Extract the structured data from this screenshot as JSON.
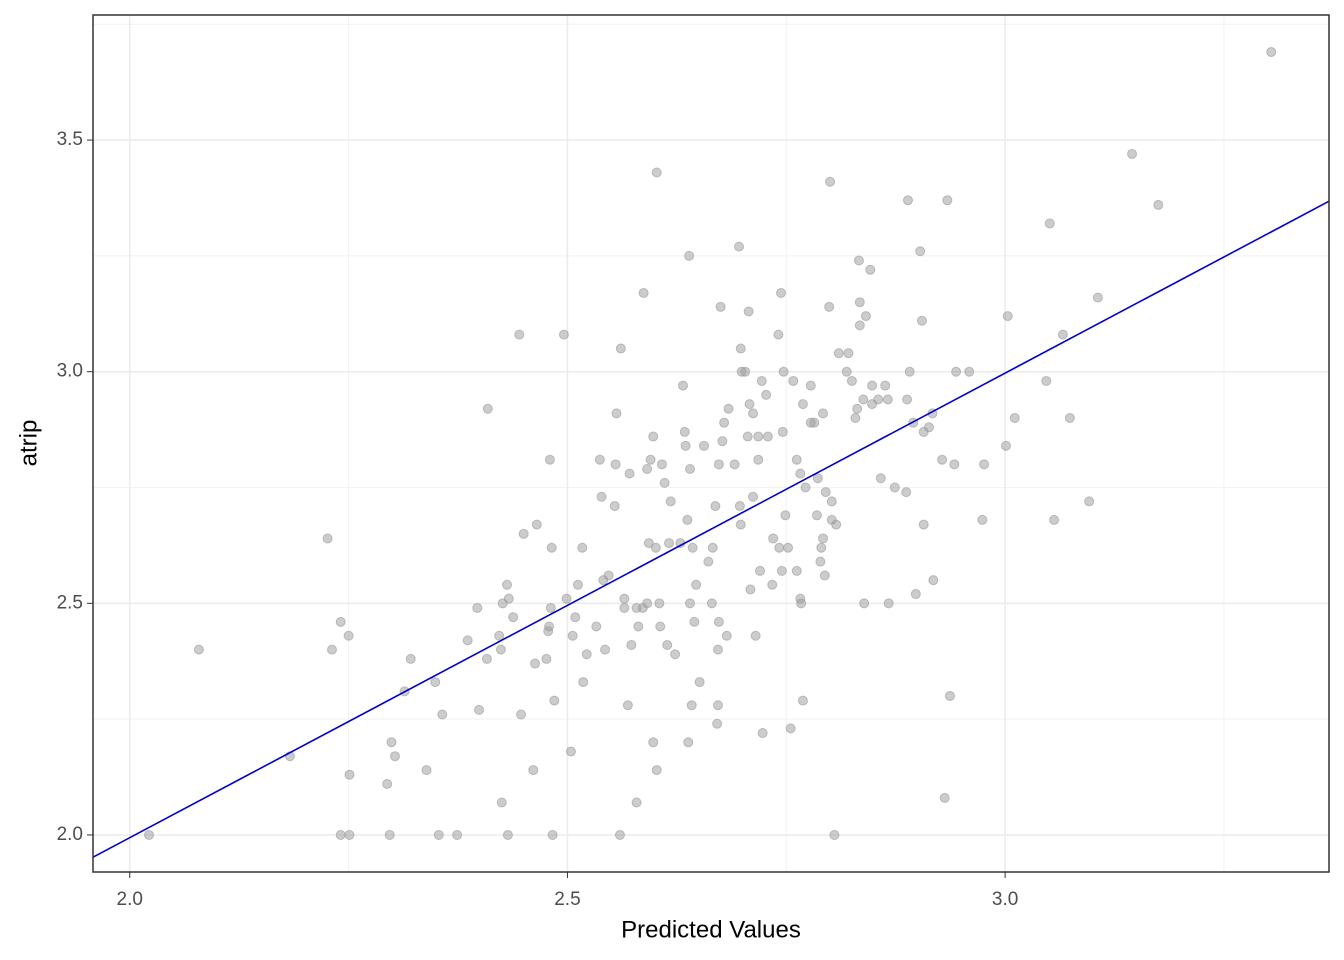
{
  "chart_data": {
    "type": "scatter",
    "xlabel": "Predicted Values",
    "ylabel": "atrip",
    "xlim": [
      1.958,
      3.37
    ],
    "ylim": [
      1.92,
      3.77
    ],
    "xticks": [
      {
        "value": 2.0,
        "label": "2.0"
      },
      2.5,
      {
        "value": 3.0,
        "label": "3.0"
      }
    ],
    "yticks": [
      {
        "value": 2.0,
        "label": "2.0"
      },
      2.5,
      {
        "value": 3.0,
        "label": "3.0"
      },
      3.5
    ],
    "grid": true,
    "minor_grid": true,
    "point_color": "#999999",
    "line_color": "#0000cc",
    "fit_line": {
      "x": [
        1.958,
        3.37
      ],
      "y": [
        1.952,
        3.368
      ]
    },
    "x": [
      2.022,
      2.079,
      2.183,
      2.226,
      2.231,
      2.241,
      2.25,
      2.241,
      2.251,
      2.251,
      2.297,
      2.299,
      2.303,
      2.294,
      2.314,
      2.321,
      2.339,
      2.349,
      2.353,
      2.357,
      2.374,
      2.386,
      2.397,
      2.399,
      2.409,
      2.408,
      2.422,
      2.424,
      2.425,
      2.426,
      2.431,
      2.433,
      2.432,
      2.438,
      2.445,
      2.447,
      2.45,
      2.461,
      2.463,
      2.465,
      2.476,
      2.478,
      2.479,
      2.48,
      2.482,
      2.485,
      2.483,
      2.481,
      2.496,
      2.499,
      2.504,
      2.506,
      2.509,
      2.512,
      2.517,
      2.518,
      2.522,
      2.533,
      2.537,
      2.539,
      2.543,
      2.541,
      2.547,
      2.554,
      2.555,
      2.556,
      2.56,
      2.561,
      2.565,
      2.565,
      2.569,
      2.571,
      2.573,
      2.579,
      2.581,
      2.579,
      2.586,
      2.587,
      2.591,
      2.591,
      2.593,
      2.595,
      2.598,
      2.598,
      2.601,
      2.602,
      2.602,
      2.605,
      2.606,
      2.608,
      2.611,
      2.614,
      2.616,
      2.618,
      2.623,
      2.629,
      2.632,
      2.634,
      2.635,
      2.637,
      2.638,
      2.639,
      2.64,
      2.64,
      2.642,
      2.643,
      2.645,
      2.647,
      2.651,
      2.656,
      2.661,
      2.665,
      2.666,
      2.669,
      2.671,
      2.672,
      2.672,
      2.673,
      2.673,
      2.675,
      2.677,
      2.679,
      2.682,
      2.684,
      2.691,
      2.696,
      2.697,
      2.698,
      2.699,
      2.698,
      2.703,
      2.706,
      2.707,
      2.708,
      2.709,
      2.712,
      2.712,
      2.715,
      2.718,
      2.718,
      2.72,
      2.722,
      2.723,
      2.727,
      2.729,
      2.734,
      2.735,
      2.741,
      2.742,
      2.744,
      2.745,
      2.746,
      2.747,
      2.749,
      2.752,
      2.755,
      2.758,
      2.762,
      2.762,
      2.766,
      2.766,
      2.767,
      2.769,
      2.769,
      2.772,
      2.778,
      2.778,
      2.782,
      2.785,
      2.786,
      2.789,
      2.79,
      2.792,
      2.792,
      2.794,
      2.795,
      2.799,
      2.8,
      2.802,
      2.802,
      2.805,
      2.807,
      2.81,
      2.819,
      2.821,
      2.825,
      2.829,
      2.831,
      2.833,
      2.834,
      2.834,
      2.838,
      2.839,
      2.841,
      2.846,
      2.848,
      2.848,
      2.855,
      2.858,
      2.863,
      2.866,
      2.867,
      2.874,
      2.887,
      2.888,
      2.889,
      2.891,
      2.895,
      2.898,
      2.903,
      2.905,
      2.907,
      2.907,
      2.913,
      2.917,
      2.918,
      2.928,
      2.931,
      2.934,
      2.937,
      2.942,
      2.944,
      2.959,
      2.974,
      2.976,
      3.001,
      3.003,
      3.011,
      3.047,
      3.051,
      3.056,
      3.066,
      3.074,
      3.096,
      3.106,
      3.145,
      3.175,
      3.304
    ],
    "values": [
      2.0,
      2.4,
      2.17,
      2.64,
      2.4,
      2.46,
      2.43,
      2.0,
      2.0,
      2.13,
      2.0,
      2.2,
      2.17,
      2.11,
      2.31,
      2.38,
      2.14,
      2.33,
      2.0,
      2.26,
      2.0,
      2.42,
      2.49,
      2.27,
      2.92,
      2.38,
      2.43,
      2.4,
      2.07,
      2.5,
      2.54,
      2.51,
      2.0,
      2.47,
      3.08,
      2.26,
      2.65,
      2.14,
      2.37,
      2.67,
      2.38,
      2.44,
      2.45,
      2.81,
      2.62,
      2.29,
      2.0,
      2.49,
      3.08,
      2.51,
      2.18,
      2.43,
      2.47,
      2.54,
      2.62,
      2.33,
      2.39,
      2.45,
      2.81,
      2.73,
      2.4,
      2.55,
      2.56,
      2.71,
      2.8,
      2.91,
      2.0,
      3.05,
      2.51,
      2.49,
      2.28,
      2.78,
      2.41,
      2.49,
      2.45,
      2.07,
      2.49,
      3.17,
      2.5,
      2.79,
      2.63,
      2.81,
      2.2,
      2.86,
      2.62,
      3.43,
      2.14,
      2.5,
      2.45,
      2.8,
      2.76,
      2.41,
      2.63,
      2.72,
      2.39,
      2.63,
      2.97,
      2.87,
      2.84,
      2.68,
      2.2,
      3.25,
      2.79,
      2.5,
      2.28,
      2.62,
      2.46,
      2.54,
      2.33,
      2.84,
      2.59,
      2.5,
      2.62,
      2.71,
      2.24,
      2.28,
      2.4,
      2.46,
      2.8,
      3.14,
      2.85,
      2.89,
      2.43,
      2.92,
      2.8,
      3.27,
      2.71,
      3.05,
      3.0,
      2.67,
      3.0,
      2.86,
      3.13,
      2.93,
      2.53,
      2.91,
      2.73,
      2.43,
      2.86,
      2.81,
      2.57,
      2.98,
      2.22,
      2.95,
      2.86,
      2.54,
      2.64,
      3.08,
      2.62,
      3.17,
      2.57,
      2.87,
      3.0,
      2.69,
      2.62,
      2.23,
      2.98,
      2.81,
      2.57,
      2.78,
      2.51,
      2.5,
      2.29,
      2.93,
      2.75,
      2.97,
      2.89,
      2.89,
      2.69,
      2.77,
      2.59,
      2.62,
      2.91,
      2.64,
      2.56,
      2.74,
      3.14,
      3.41,
      2.72,
      2.68,
      2.0,
      2.67,
      3.04,
      3.0,
      3.04,
      2.98,
      2.9,
      2.92,
      3.24,
      3.15,
      3.1,
      2.94,
      2.5,
      3.12,
      3.22,
      2.97,
      2.93,
      2.94,
      2.77,
      2.97,
      2.94,
      2.5,
      2.75,
      2.74,
      2.94,
      3.37,
      3.0,
      2.89,
      2.52,
      3.26,
      3.11,
      2.87,
      2.67,
      2.88,
      2.91,
      2.55,
      2.81,
      2.08,
      3.37,
      2.3,
      2.8,
      3.0,
      3.0,
      2.68,
      2.8,
      2.84,
      3.12,
      2.9,
      2.98,
      3.32,
      2.68,
      3.08,
      2.9,
      2.72,
      3.16,
      3.47,
      3.36,
      3.69
    ]
  }
}
